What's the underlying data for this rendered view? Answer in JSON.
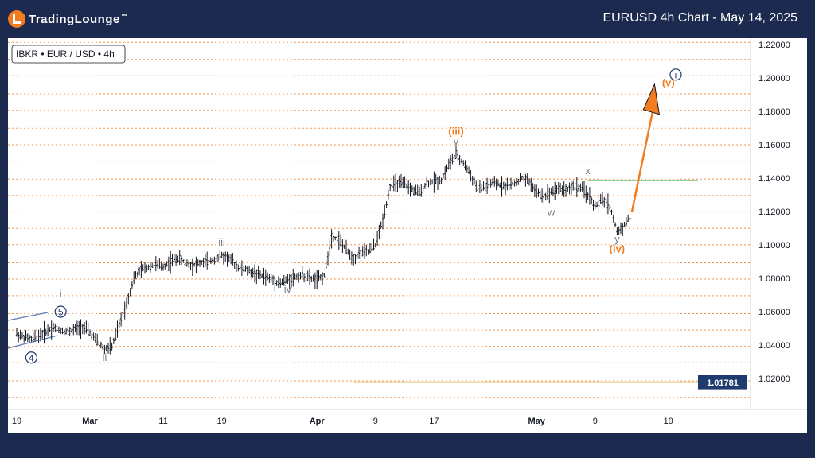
{
  "header": {
    "logo_text": "TradingLounge",
    "title": "EURUSD 4h Chart - May 14, 2025"
  },
  "colors": {
    "background": "#1b2a4e",
    "orange": "#f47c20",
    "grey_label": "#787b86",
    "navy": "#1e3a6e",
    "green_line": "#81c784",
    "price_badge": "#1e3a6e"
  },
  "chart_data": {
    "type": "line",
    "symbol_label": "IBKR • EUR / USD • 4h",
    "x_labels": [
      "19",
      "Mar",
      "11",
      "19",
      "Apr",
      "9",
      "17",
      "May",
      "9",
      "19"
    ],
    "x_label_dates": [
      "2025-02-19",
      "2025-03-01",
      "2025-03-11",
      "2025-03-19",
      "2025-04-01",
      "2025-04-09",
      "2025-04-17",
      "2025-05-01",
      "2025-05-09",
      "2025-05-19"
    ],
    "y_labels": [
      "1.22000",
      "1.20000",
      "1.18000",
      "1.16000",
      "1.14000",
      "1.12000",
      "1.10000",
      "1.08000",
      "1.06000",
      "1.04000",
      "1.02000"
    ],
    "ylim": [
      1.0,
      1.222
    ],
    "grid_levels": [
      1.2213,
      1.2111,
      1.2013,
      1.1905,
      1.1806,
      1.1699,
      1.16,
      1.1502,
      1.1394,
      1.1296,
      1.1197,
      1.1099,
      1.1001,
      1.0893,
      1.0795,
      1.0696,
      1.0588,
      1.049,
      1.0392,
      1.0294,
      1.0186,
      1.0087
    ],
    "price_line": {
      "value": 1.01781,
      "label": "1.01781",
      "x_start": "2025-04-06",
      "x_end": "2025-05-14"
    },
    "resistance_line": {
      "value": 1.1385,
      "x_start": "2025-05-08",
      "x_end": "2025-05-23"
    },
    "projection_arrow": {
      "from": [
        "2025-05-14",
        1.1195
      ],
      "to": [
        "2025-05-17",
        1.1915
      ]
    },
    "price_path": [
      [
        "2025-02-19",
        1.0468
      ],
      [
        "2025-02-20",
        1.0448
      ],
      [
        "2025-02-21",
        1.0435
      ],
      [
        "2025-02-22",
        1.0455
      ],
      [
        "2025-02-23",
        1.0481
      ],
      [
        "2025-02-24",
        1.0508
      ],
      [
        "2025-02-25",
        1.049
      ],
      [
        "2025-02-26",
        1.0478
      ],
      [
        "2025-02-27",
        1.0495
      ],
      [
        "2025-02-28",
        1.0512
      ],
      [
        "2025-03-01",
        1.047
      ],
      [
        "2025-03-02",
        1.042
      ],
      [
        "2025-03-03",
        1.0375
      ],
      [
        "2025-03-04",
        1.039
      ],
      [
        "2025-03-05",
        1.052
      ],
      [
        "2025-03-06",
        1.065
      ],
      [
        "2025-03-07",
        1.08
      ],
      [
        "2025-03-08",
        1.085
      ],
      [
        "2025-03-09",
        1.087
      ],
      [
        "2025-03-10",
        1.088
      ],
      [
        "2025-03-11",
        1.087
      ],
      [
        "2025-03-12",
        1.09
      ],
      [
        "2025-03-13",
        1.092
      ],
      [
        "2025-03-14",
        1.0895
      ],
      [
        "2025-03-15",
        1.088
      ],
      [
        "2025-03-16",
        1.089
      ],
      [
        "2025-03-17",
        1.0905
      ],
      [
        "2025-03-18",
        1.0915
      ],
      [
        "2025-03-19",
        1.0935
      ],
      [
        "2025-03-20",
        1.092
      ],
      [
        "2025-03-21",
        1.0875
      ],
      [
        "2025-03-22",
        1.0855
      ],
      [
        "2025-03-23",
        1.084
      ],
      [
        "2025-03-24",
        1.082
      ],
      [
        "2025-03-25",
        1.081
      ],
      [
        "2025-03-26",
        1.079
      ],
      [
        "2025-03-27",
        1.077
      ],
      [
        "2025-03-28",
        1.079
      ],
      [
        "2025-03-29",
        1.081
      ],
      [
        "2025-03-30",
        1.082
      ],
      [
        "2025-03-31",
        1.08
      ],
      [
        "2025-04-01",
        1.079
      ],
      [
        "2025-04-02",
        1.082
      ],
      [
        "2025-04-03",
        1.105
      ],
      [
        "2025-04-04",
        1.103
      ],
      [
        "2025-04-05",
        1.097
      ],
      [
        "2025-04-06",
        1.092
      ],
      [
        "2025-04-07",
        1.095
      ],
      [
        "2025-04-08",
        1.096
      ],
      [
        "2025-04-09",
        1.1
      ],
      [
        "2025-04-10",
        1.115
      ],
      [
        "2025-04-11",
        1.135
      ],
      [
        "2025-04-12",
        1.137
      ],
      [
        "2025-04-13",
        1.136
      ],
      [
        "2025-04-14",
        1.133
      ],
      [
        "2025-04-15",
        1.131
      ],
      [
        "2025-04-16",
        1.137
      ],
      [
        "2025-04-17",
        1.138
      ],
      [
        "2025-04-18",
        1.139
      ],
      [
        "2025-04-19",
        1.148
      ],
      [
        "2025-04-20",
        1.154
      ],
      [
        "2025-04-21",
        1.149
      ],
      [
        "2025-04-22",
        1.142
      ],
      [
        "2025-04-23",
        1.133
      ],
      [
        "2025-04-24",
        1.135
      ],
      [
        "2025-04-25",
        1.137
      ],
      [
        "2025-04-26",
        1.136
      ],
      [
        "2025-04-27",
        1.135
      ],
      [
        "2025-04-28",
        1.137
      ],
      [
        "2025-04-29",
        1.14
      ],
      [
        "2025-04-30",
        1.138
      ],
      [
        "2025-05-01",
        1.131
      ],
      [
        "2025-05-02",
        1.129
      ],
      [
        "2025-05-03",
        1.132
      ],
      [
        "2025-05-04",
        1.134
      ],
      [
        "2025-05-05",
        1.133
      ],
      [
        "2025-05-06",
        1.135
      ],
      [
        "2025-05-07",
        1.134
      ],
      [
        "2025-05-08",
        1.13
      ],
      [
        "2025-05-09",
        1.123
      ],
      [
        "2025-05-10",
        1.127
      ],
      [
        "2025-05-11",
        1.123
      ],
      [
        "2025-05-12",
        1.108
      ],
      [
        "2025-05-13",
        1.112
      ],
      [
        "2025-05-14",
        1.1185
      ]
    ],
    "wave_labels": [
      {
        "text": "i",
        "x": "2025-02-25",
        "y": 1.0685,
        "style": "grey"
      },
      {
        "text": "5",
        "x": "2025-02-25",
        "y": 1.06,
        "style": "navy-circle"
      },
      {
        "text": "4",
        "x": "2025-02-21",
        "y": 1.0325,
        "style": "navy-circle"
      },
      {
        "text": "ii",
        "x": "2025-03-03",
        "y": 1.0305,
        "style": "grey"
      },
      {
        "text": "iii",
        "x": "2025-03-19",
        "y": 1.0995,
        "style": "grey"
      },
      {
        "text": "iv",
        "x": "2025-03-28",
        "y": 1.0715,
        "style": "grey"
      },
      {
        "text": "(iii)",
        "x": "2025-04-20",
        "y": 1.166,
        "style": "orange"
      },
      {
        "text": "v",
        "x": "2025-04-20",
        "y": 1.16,
        "style": "grey"
      },
      {
        "text": "w",
        "x": "2025-05-03",
        "y": 1.1175,
        "style": "grey"
      },
      {
        "text": "x",
        "x": "2025-05-08",
        "y": 1.1425,
        "style": "grey"
      },
      {
        "text": "y",
        "x": "2025-05-12",
        "y": 1.1015,
        "style": "grey"
      },
      {
        "text": "(iv)",
        "x": "2025-05-12",
        "y": 1.0955,
        "style": "orange"
      },
      {
        "text": "(v)",
        "x": "2025-05-19",
        "y": 1.195,
        "style": "orange"
      },
      {
        "text": "i",
        "x": "2025-05-20",
        "y": 1.202,
        "style": "navy-circle"
      }
    ]
  }
}
